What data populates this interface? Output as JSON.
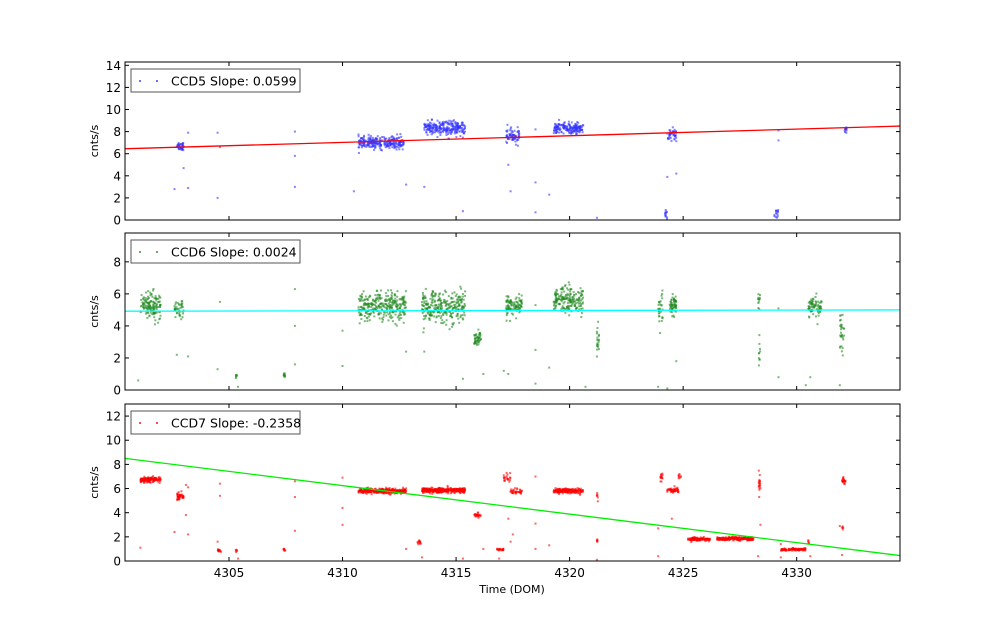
{
  "chart_data": {
    "type": "scatter",
    "xlabel": "Time (DOM)",
    "xlim": [
      4300.42,
      4334.55
    ],
    "xticks": [
      4305,
      4310,
      4315,
      4320,
      4325,
      4330
    ],
    "xtick_labels": [
      "4305",
      "4310",
      "4315",
      "4320",
      "4325",
      "4330"
    ],
    "panels": [
      {
        "name": "CCD5",
        "legend": "CCD5 Slope: 0.0599",
        "ylabel": "cnts/s",
        "ylim": [
          0,
          14.3
        ],
        "yticks": [
          0,
          2,
          4,
          6,
          8,
          10,
          12,
          14
        ],
        "ytick_labels": [
          "0",
          "2",
          "4",
          "6",
          "8",
          "10",
          "12",
          "14"
        ],
        "point_color": "#3333ff",
        "fit_color": "#ff0000",
        "fit_line": {
          "x": [
            4300.42,
            4334.55
          ],
          "y": [
            6.45,
            8.5
          ]
        },
        "clusters": [
          {
            "x": [
              4302.7,
              4303.0
            ],
            "y": 6.7,
            "spread": 0.35,
            "n": 40
          },
          {
            "x": [
              4310.7,
              4312.7
            ],
            "y": 7.0,
            "spread": 0.45,
            "n": 260
          },
          {
            "x": [
              4313.6,
              4315.4
            ],
            "y": 8.3,
            "spread": 0.55,
            "n": 240
          },
          {
            "x": [
              4317.2,
              4317.8
            ],
            "y": 7.6,
            "spread": 0.55,
            "n": 70
          },
          {
            "x": [
              4319.3,
              4320.6
            ],
            "y": 8.3,
            "spread": 0.4,
            "n": 170
          },
          {
            "x": [
              4324.3,
              4324.7
            ],
            "y": 7.7,
            "spread": 0.45,
            "n": 45
          },
          {
            "x": [
              4324.2,
              4324.3
            ],
            "y": 0.6,
            "spread": 0.5,
            "n": 12
          },
          {
            "x": [
              4329.0,
              4329.2
            ],
            "y": 0.6,
            "spread": 0.55,
            "n": 14
          },
          {
            "x": [
              4332.1,
              4332.2
            ],
            "y": 8.2,
            "spread": 0.3,
            "n": 12
          }
        ],
        "outliers": [
          [
            4302.6,
            2.8
          ],
          [
            4303.0,
            4.7
          ],
          [
            4303.2,
            2.9
          ],
          [
            4303.2,
            7.9
          ],
          [
            4304.5,
            2.0
          ],
          [
            4304.6,
            6.6
          ],
          [
            4304.5,
            7.9
          ],
          [
            4307.9,
            8.0
          ],
          [
            4307.9,
            5.8
          ],
          [
            4307.9,
            3.0
          ],
          [
            4310.5,
            2.6
          ],
          [
            4312.8,
            3.2
          ],
          [
            4313.6,
            3.0
          ],
          [
            4315.3,
            0.8
          ],
          [
            4317.4,
            2.6
          ],
          [
            4317.3,
            5.0
          ],
          [
            4318.5,
            3.4
          ],
          [
            4318.5,
            8.2
          ],
          [
            4318.5,
            0.7
          ],
          [
            4319.1,
            2.3
          ],
          [
            4321.2,
            0.2
          ],
          [
            4324.7,
            4.2
          ],
          [
            4324.3,
            3.9
          ],
          [
            4329.2,
            7.2
          ],
          [
            4329.2,
            8.1
          ]
        ]
      },
      {
        "name": "CCD6",
        "legend": "CCD6 Slope: 0.0024",
        "ylabel": "cnts/s",
        "ylim": [
          0,
          9.8
        ],
        "yticks": [
          0,
          2,
          4,
          6,
          8
        ],
        "ytick_labels": [
          "0",
          "2",
          "4",
          "6",
          "8"
        ],
        "point_color": "#228b22",
        "fit_color": "#00ffff",
        "fit_line": {
          "x": [
            4300.42,
            4334.55
          ],
          "y": [
            4.92,
            5.0
          ]
        },
        "clusters": [
          {
            "x": [
              4301.1,
              4302.0
            ],
            "y": 5.3,
            "spread": 0.7,
            "n": 140
          },
          {
            "x": [
              4302.6,
              4303.0
            ],
            "y": 4.9,
            "spread": 0.6,
            "n": 40
          },
          {
            "x": [
              4305.3,
              4305.35
            ],
            "y": 0.85,
            "spread": 0.1,
            "n": 8
          },
          {
            "x": [
              4307.4,
              4307.5
            ],
            "y": 0.9,
            "spread": 0.12,
            "n": 10
          },
          {
            "x": [
              4310.7,
              4312.8
            ],
            "y": 5.2,
            "spread": 0.75,
            "n": 300
          },
          {
            "x": [
              4313.5,
              4315.4
            ],
            "y": 5.2,
            "spread": 0.8,
            "n": 280
          },
          {
            "x": [
              4315.8,
              4316.1
            ],
            "y": 3.2,
            "spread": 0.35,
            "n": 45
          },
          {
            "x": [
              4317.2,
              4317.9
            ],
            "y": 5.2,
            "spread": 0.6,
            "n": 100
          },
          {
            "x": [
              4319.3,
              4320.6
            ],
            "y": 5.6,
            "spread": 0.75,
            "n": 190
          },
          {
            "x": [
              4321.2,
              4321.3
            ],
            "y": 2.8,
            "spread": 1.0,
            "n": 20
          },
          {
            "x": [
              4323.9,
              4324.1
            ],
            "y": 5.0,
            "spread": 0.8,
            "n": 30
          },
          {
            "x": [
              4324.4,
              4324.7
            ],
            "y": 5.2,
            "spread": 0.5,
            "n": 60
          },
          {
            "x": [
              4328.3,
              4328.4
            ],
            "y": 5.5,
            "spread": 0.5,
            "n": 12
          },
          {
            "x": [
              4328.3,
              4328.4
            ],
            "y": 2.3,
            "spread": 0.6,
            "n": 10
          },
          {
            "x": [
              4330.5,
              4331.1
            ],
            "y": 5.2,
            "spread": 0.55,
            "n": 80
          },
          {
            "x": [
              4331.9,
              4332.1
            ],
            "y": 3.6,
            "spread": 1.0,
            "n": 30
          }
        ],
        "outliers": [
          [
            4301.0,
            0.6
          ],
          [
            4302.7,
            2.2
          ],
          [
            4303.2,
            2.1
          ],
          [
            4304.5,
            1.3
          ],
          [
            4304.6,
            5.5
          ],
          [
            4305.4,
            0.2
          ],
          [
            4307.9,
            6.3
          ],
          [
            4307.9,
            4.0
          ],
          [
            4307.9,
            1.6
          ],
          [
            4310.0,
            1.5
          ],
          [
            4310.0,
            3.7
          ],
          [
            4312.8,
            2.4
          ],
          [
            4313.6,
            2.4
          ],
          [
            4315.3,
            0.7
          ],
          [
            4316.2,
            1.0
          ],
          [
            4317.1,
            1.2
          ],
          [
            4317.3,
            1.0
          ],
          [
            4318.5,
            5.3
          ],
          [
            4318.5,
            2.5
          ],
          [
            4318.5,
            0.4
          ],
          [
            4319.1,
            1.4
          ],
          [
            4320.7,
            0.2
          ],
          [
            4323.9,
            0.2
          ],
          [
            4324.3,
            0.1
          ],
          [
            4324.7,
            1.8
          ],
          [
            4329.2,
            5.1
          ],
          [
            4329.2,
            0.8
          ],
          [
            4330.4,
            0.3
          ],
          [
            4330.6,
            0.8
          ],
          [
            4331.9,
            0.3
          ]
        ]
      },
      {
        "name": "CCD7",
        "legend": "CCD7 Slope: -0.2358",
        "ylabel": "cnts/s",
        "ylim": [
          0,
          13.0
        ],
        "yticks": [
          0,
          2,
          4,
          6,
          8,
          10,
          12
        ],
        "ytick_labels": [
          "0",
          "2",
          "4",
          "6",
          "8",
          "10",
          "12"
        ],
        "point_color": "#ff0000",
        "fit_color": "#00ee00",
        "fit_line": {
          "x": [
            4300.42,
            4334.55
          ],
          "y": [
            8.5,
            0.45
          ]
        },
        "clusters": [
          {
            "x": [
              4301.1,
              4302.0
            ],
            "y": 6.75,
            "spread": 0.18,
            "n": 130
          },
          {
            "x": [
              4302.7,
              4303.0
            ],
            "y": 5.35,
            "spread": 0.25,
            "n": 40
          },
          {
            "x": [
              4304.5,
              4304.65
            ],
            "y": 0.85,
            "spread": 0.1,
            "n": 14
          },
          {
            "x": [
              4305.3,
              4305.35
            ],
            "y": 0.9,
            "spread": 0.08,
            "n": 6
          },
          {
            "x": [
              4307.4,
              4307.5
            ],
            "y": 0.95,
            "spread": 0.1,
            "n": 8
          },
          {
            "x": [
              4310.7,
              4312.8
            ],
            "y": 5.8,
            "spread": 0.17,
            "n": 340
          },
          {
            "x": [
              4313.5,
              4315.4
            ],
            "y": 5.85,
            "spread": 0.17,
            "n": 320
          },
          {
            "x": [
              4313.3,
              4313.45
            ],
            "y": 1.5,
            "spread": 0.15,
            "n": 12
          },
          {
            "x": [
              4315.8,
              4316.1
            ],
            "y": 3.8,
            "spread": 0.15,
            "n": 25
          },
          {
            "x": [
              4316.8,
              4317.1
            ],
            "y": 0.95,
            "spread": 0.08,
            "n": 20
          },
          {
            "x": [
              4317.1,
              4317.4
            ],
            "y": 6.9,
            "spread": 0.3,
            "n": 20
          },
          {
            "x": [
              4317.4,
              4317.9
            ],
            "y": 5.75,
            "spread": 0.2,
            "n": 35
          },
          {
            "x": [
              4319.3,
              4320.6
            ],
            "y": 5.8,
            "spread": 0.17,
            "n": 200
          },
          {
            "x": [
              4321.2,
              4321.25
            ],
            "y": 1.6,
            "spread": 0.15,
            "n": 6
          },
          {
            "x": [
              4321.2,
              4321.25
            ],
            "y": 5.4,
            "spread": 0.25,
            "n": 6
          },
          {
            "x": [
              4324.0,
              4324.1
            ],
            "y": 7.0,
            "spread": 0.3,
            "n": 14
          },
          {
            "x": [
              4324.3,
              4324.8
            ],
            "y": 5.85,
            "spread": 0.15,
            "n": 50
          },
          {
            "x": [
              4324.8,
              4324.9
            ],
            "y": 7.0,
            "spread": 0.2,
            "n": 8
          },
          {
            "x": [
              4325.2,
              4326.2
            ],
            "y": 1.8,
            "spread": 0.12,
            "n": 120
          },
          {
            "x": [
              4326.5,
              4328.1
            ],
            "y": 1.85,
            "spread": 0.12,
            "n": 220
          },
          {
            "x": [
              4328.3,
              4328.4
            ],
            "y": 6.3,
            "spread": 0.6,
            "n": 18
          },
          {
            "x": [
              4329.3,
              4330.4
            ],
            "y": 0.95,
            "spread": 0.1,
            "n": 110
          },
          {
            "x": [
              4330.5,
              4330.55
            ],
            "y": 1.5,
            "spread": 0.2,
            "n": 6
          },
          {
            "x": [
              4332.0,
              4332.15
            ],
            "y": 6.6,
            "spread": 0.3,
            "n": 20
          },
          {
            "x": [
              4332.0,
              4332.05
            ],
            "y": 2.7,
            "spread": 0.15,
            "n": 5
          }
        ],
        "outliers": [
          [
            4301.1,
            1.1
          ],
          [
            4302.6,
            2.4
          ],
          [
            4303.1,
            6.3
          ],
          [
            4303.2,
            6.1
          ],
          [
            4303.2,
            2.2
          ],
          [
            4303.1,
            3.8
          ],
          [
            4304.6,
            6.4
          ],
          [
            4304.6,
            5.4
          ],
          [
            4304.5,
            1.6
          ],
          [
            4305.4,
            0.2
          ],
          [
            4307.9,
            6.6
          ],
          [
            4307.9,
            5.3
          ],
          [
            4307.9,
            2.5
          ],
          [
            4310.0,
            6.9
          ],
          [
            4310.0,
            4.4
          ],
          [
            4310.0,
            3.0
          ],
          [
            4312.8,
            1.0
          ],
          [
            4313.5,
            0.3
          ],
          [
            4315.3,
            0.2
          ],
          [
            4316.2,
            1.0
          ],
          [
            4316.9,
            0.2
          ],
          [
            4317.3,
            3.5
          ],
          [
            4317.4,
            1.6
          ],
          [
            4317.5,
            2.2
          ],
          [
            4318.5,
            7.0
          ],
          [
            4318.5,
            3.1
          ],
          [
            4318.5,
            1.0
          ],
          [
            4319.1,
            1.3
          ],
          [
            4321.2,
            0.1
          ],
          [
            4323.9,
            0.4
          ],
          [
            4323.9,
            2.7
          ],
          [
            4324.5,
            3.5
          ],
          [
            4328.3,
            0.4
          ],
          [
            4328.4,
            3.0
          ],
          [
            4329.3,
            1.4
          ],
          [
            4329.3,
            0.3
          ],
          [
            4330.6,
            0.4
          ],
          [
            4331.9,
            2.9
          ],
          [
            4332.0,
            0.5
          ]
        ]
      }
    ]
  }
}
